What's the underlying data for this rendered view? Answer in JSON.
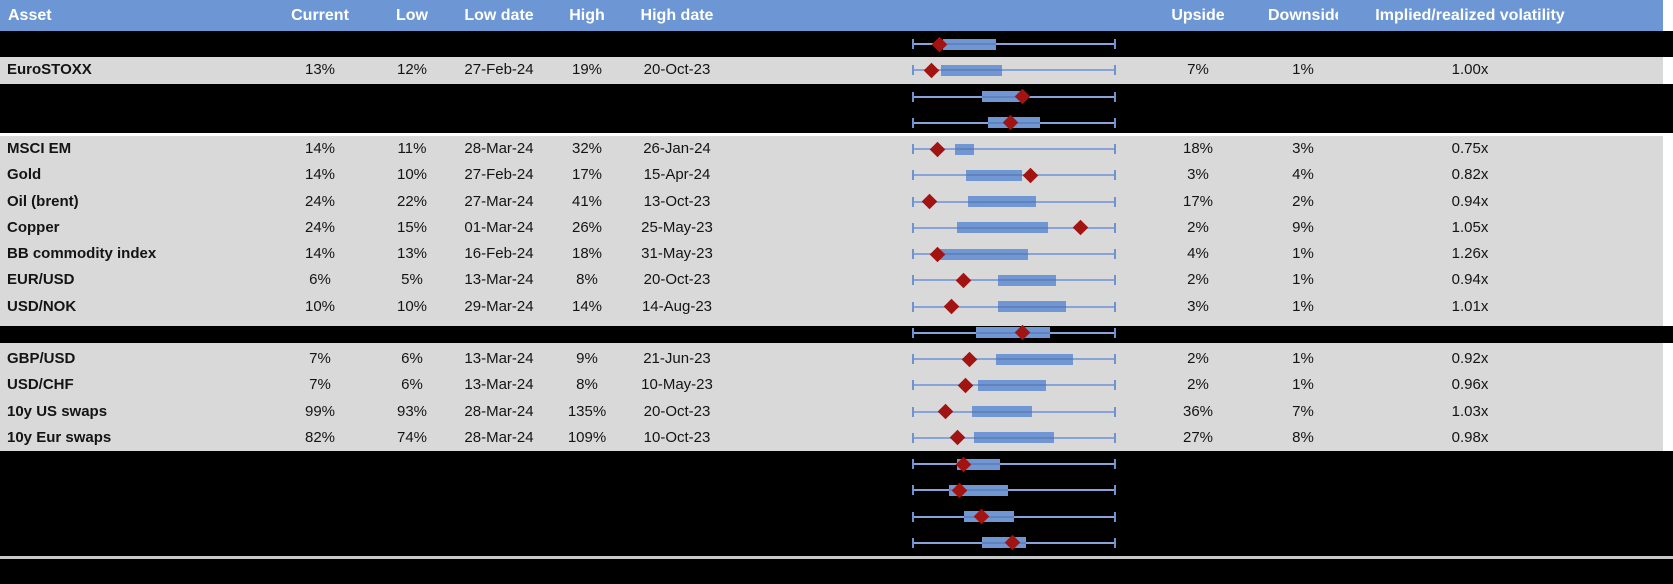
{
  "header": {
    "columns": [
      "Asset",
      "Current",
      "Low",
      "Low date",
      "High",
      "High date",
      "Upside",
      "Downside",
      "Implied/realized volatility"
    ]
  },
  "colors": {
    "header_bg": "#6d96d4",
    "header_text": "#ffffff",
    "row_bg": "#d9d9d9",
    "redaction": "#000000",
    "box_fill": "#7097d3",
    "whisker": "#87a3d8",
    "whisker_cap": "#6e94d0",
    "marker_diamond": "#a21411",
    "separator_line": "#c8c8c8",
    "cell_text": "#141414"
  },
  "chart_data": {
    "type": "table",
    "columns": [
      "Asset",
      "Current",
      "Low",
      "Low date",
      "High",
      "High date",
      "Upside",
      "Downside",
      "Implied/realized volatility"
    ],
    "boxplot_note": "Each row has a horizontal box-whisker plot between High date and Upside columns; whiskers span the full low-high range (normalized 0-1), blue box = middle range, dark-red diamond = marker position. Redacted (black) rows show only their box plots.",
    "rows": [
      {
        "kind": "redacted",
        "box_lo": 0.15,
        "box_hi": 0.41,
        "marker": 0.13
      },
      {
        "kind": "asset",
        "asset": "EuroSTOXX",
        "current": "13%",
        "low": "12%",
        "low_date": "27-Feb-24",
        "high": "19%",
        "high_date": "20-Oct-23",
        "upside": "7%",
        "downside": "1%",
        "implied_realized": "1.00x",
        "box_lo": 0.14,
        "box_hi": 0.44,
        "marker": 0.09
      },
      {
        "kind": "redacted",
        "box_lo": 0.34,
        "box_hi": 0.55,
        "marker": 0.54
      },
      {
        "kind": "redacted_short",
        "box_lo": 0.37,
        "box_hi": 0.63,
        "marker": 0.48
      },
      {
        "kind": "asset",
        "asset": "MSCI EM",
        "current": "14%",
        "low": "11%",
        "low_date": "28-Mar-24",
        "high": "32%",
        "high_date": "26-Jan-24",
        "upside": "18%",
        "downside": "3%",
        "implied_realized": "0.75x",
        "box_lo": 0.21,
        "box_hi": 0.3,
        "marker": 0.12
      },
      {
        "kind": "asset",
        "asset": "Gold",
        "current": "14%",
        "low": "10%",
        "low_date": "27-Feb-24",
        "high": "17%",
        "high_date": "15-Apr-24",
        "upside": "3%",
        "downside": "4%",
        "implied_realized": "0.82x",
        "box_lo": 0.26,
        "box_hi": 0.54,
        "marker": 0.58
      },
      {
        "kind": "asset",
        "asset": "Oil (brent)",
        "current": "24%",
        "low": "22%",
        "low_date": "27-Mar-24",
        "high": "41%",
        "high_date": "13-Oct-23",
        "upside": "17%",
        "downside": "2%",
        "implied_realized": "0.94x",
        "box_lo": 0.27,
        "box_hi": 0.61,
        "marker": 0.08
      },
      {
        "kind": "asset",
        "asset": "Copper",
        "current": "24%",
        "low": "15%",
        "low_date": "01-Mar-24",
        "high": "26%",
        "high_date": "25-May-23",
        "upside": "2%",
        "downside": "9%",
        "implied_realized": "1.05x",
        "box_lo": 0.22,
        "box_hi": 0.67,
        "marker": 0.83
      },
      {
        "kind": "asset",
        "asset": "BB commodity index",
        "current": "14%",
        "low": "13%",
        "low_date": "16-Feb-24",
        "high": "18%",
        "high_date": "31-May-23",
        "upside": "4%",
        "downside": "1%",
        "implied_realized": "1.26x",
        "box_lo": 0.13,
        "box_hi": 0.57,
        "marker": 0.12
      },
      {
        "kind": "asset",
        "asset": "EUR/USD",
        "current": "6%",
        "low": "5%",
        "low_date": "13-Mar-24",
        "high": "8%",
        "high_date": "20-Oct-23",
        "upside": "2%",
        "downside": "1%",
        "implied_realized": "0.94x",
        "box_lo": 0.42,
        "box_hi": 0.71,
        "marker": 0.25
      },
      {
        "kind": "asset",
        "asset": "USD/NOK",
        "current": "10%",
        "low": "10%",
        "low_date": "29-Mar-24",
        "high": "14%",
        "high_date": "14-Aug-23",
        "upside": "3%",
        "downside": "1%",
        "implied_realized": "1.01x",
        "box_lo": 0.42,
        "box_hi": 0.76,
        "marker": 0.19
      },
      {
        "kind": "redacted_band",
        "box_lo": 0.31,
        "box_hi": 0.68,
        "marker": 0.54
      },
      {
        "kind": "asset",
        "asset": "GBP/USD",
        "current": "7%",
        "low": "6%",
        "low_date": "13-Mar-24",
        "high": "9%",
        "high_date": "21-Jun-23",
        "upside": "2%",
        "downside": "1%",
        "implied_realized": "0.92x",
        "box_lo": 0.41,
        "box_hi": 0.79,
        "marker": 0.28
      },
      {
        "kind": "asset",
        "asset": "USD/CHF",
        "current": "7%",
        "low": "6%",
        "low_date": "13-Mar-24",
        "high": "8%",
        "high_date": "10-May-23",
        "upside": "2%",
        "downside": "1%",
        "implied_realized": "0.96x",
        "box_lo": 0.32,
        "box_hi": 0.66,
        "marker": 0.26
      },
      {
        "kind": "asset",
        "asset": "10y US swaps",
        "current": "99%",
        "low": "93%",
        "low_date": "28-Mar-24",
        "high": "135%",
        "high_date": "20-Oct-23",
        "upside": "36%",
        "downside": "7%",
        "implied_realized": "1.03x",
        "box_lo": 0.29,
        "box_hi": 0.59,
        "marker": 0.16
      },
      {
        "kind": "asset",
        "asset": "10y Eur swaps",
        "current": "82%",
        "low": "74%",
        "low_date": "28-Mar-24",
        "high": "109%",
        "high_date": "10-Oct-23",
        "upside": "27%",
        "downside": "8%",
        "implied_realized": "0.98x",
        "box_lo": 0.3,
        "box_hi": 0.7,
        "marker": 0.22
      },
      {
        "kind": "redacted",
        "box_lo": 0.22,
        "box_hi": 0.43,
        "marker": 0.25
      },
      {
        "kind": "redacted",
        "box_lo": 0.18,
        "box_hi": 0.47,
        "marker": 0.23
      },
      {
        "kind": "redacted",
        "box_lo": 0.25,
        "box_hi": 0.5,
        "marker": 0.34
      },
      {
        "kind": "redacted",
        "box_lo": 0.34,
        "box_hi": 0.56,
        "marker": 0.49
      }
    ]
  }
}
